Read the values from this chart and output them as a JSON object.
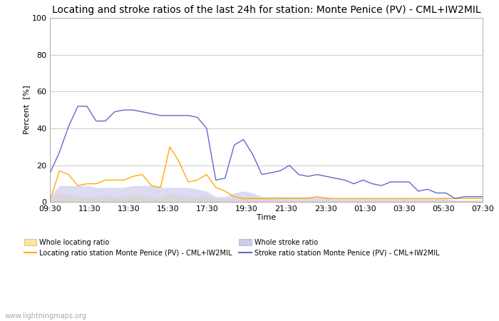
{
  "title": "Locating and stroke ratios of the last 24h for station: Monte Penice (PV) - CML+IW2MIL",
  "xlabel": "Time",
  "ylabel": "Percent  [%]",
  "ylim": [
    0,
    100
  ],
  "yticks": [
    0,
    20,
    40,
    60,
    80,
    100
  ],
  "xtick_labels": [
    "09:30",
    "11:30",
    "13:30",
    "15:30",
    "17:30",
    "19:30",
    "21:30",
    "23:30",
    "01:30",
    "03:30",
    "05:30",
    "07:30"
  ],
  "watermark": "www.lightningmaps.org",
  "locating_line_color": "#ffaa00",
  "stroke_line_color": "#6666cc",
  "locating_fill_color": "#ffe599",
  "stroke_fill_color": "#ccccee",
  "locating_fill_edge": "#ccaa77",
  "stroke_fill_edge": "#aaaacc",
  "background_color": "#ffffff",
  "grid_color": "#cccccc",
  "title_fontsize": 10,
  "axis_fontsize": 8,
  "tick_fontsize": 8,
  "locating_ratio_line": [
    1,
    17,
    15,
    9,
    10,
    10,
    12,
    12,
    12,
    14,
    15,
    9,
    8,
    30,
    22,
    11,
    12,
    15,
    8,
    6,
    3,
    2,
    2,
    2,
    2,
    2,
    2,
    2,
    2,
    3,
    2,
    2,
    2,
    2,
    2,
    2,
    2,
    2,
    2,
    2,
    2,
    2,
    2,
    2,
    2,
    2,
    2,
    2
  ],
  "stroke_ratio_line": [
    16,
    27,
    41,
    52,
    52,
    44,
    44,
    49,
    50,
    50,
    49,
    48,
    47,
    47,
    47,
    47,
    46,
    40,
    12,
    13,
    31,
    34,
    26,
    15,
    16,
    17,
    20,
    15,
    14,
    15,
    14,
    13,
    12,
    10,
    12,
    10,
    9,
    11,
    11,
    11,
    6,
    7,
    5,
    5,
    2,
    3,
    3,
    3
  ],
  "locating_fill": [
    1,
    5,
    4,
    3,
    3,
    3,
    4,
    3,
    3,
    4,
    4,
    3,
    2,
    5,
    4,
    3,
    3,
    4,
    2,
    2,
    2,
    2,
    2,
    2,
    2,
    1,
    1,
    1,
    1,
    1,
    1,
    1,
    1,
    1,
    1,
    1,
    1,
    1,
    1,
    1,
    1,
    1,
    1,
    1,
    1,
    1,
    1,
    1
  ],
  "stroke_fill": [
    3,
    9,
    9,
    9,
    9,
    8,
    8,
    8,
    8,
    9,
    9,
    9,
    8,
    8,
    8,
    8,
    7,
    6,
    3,
    3,
    5,
    6,
    5,
    3,
    3,
    3,
    3,
    3,
    3,
    3,
    3,
    2,
    2,
    2,
    2,
    2,
    2,
    2,
    2,
    2,
    2,
    2,
    2,
    2,
    1,
    1,
    1,
    1
  ]
}
